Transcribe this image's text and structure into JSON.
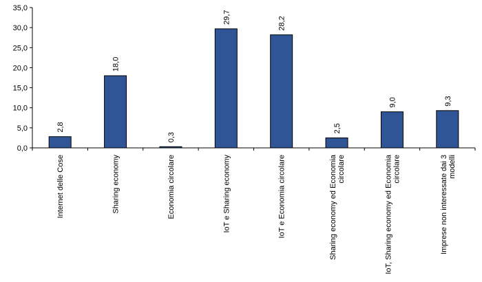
{
  "chart_data": {
    "type": "bar",
    "categories": [
      "Internet delle Cose",
      "Sharing economy",
      "Economia circolare",
      "IoT e Sharing economy",
      "IoT e Economia circolare",
      "Sharing economy ed Economia circolare",
      "IoT, Sharing economy ed Economia circolare",
      "Imprese non interessate dai 3 modelli"
    ],
    "values": [
      2.8,
      18.0,
      0.3,
      29.7,
      28.2,
      2.5,
      9.0,
      9.3
    ],
    "value_labels": [
      "2,8",
      "18,0",
      "0,3",
      "29,7",
      "28,2",
      "2,5",
      "9,0",
      "9,3"
    ],
    "y_ticks": [
      0,
      5,
      10,
      15,
      20,
      25,
      30,
      35
    ],
    "y_tick_labels": [
      "0,0",
      "5,0",
      "10,0",
      "15,0",
      "20,0",
      "25,0",
      "30,0",
      "35,0"
    ],
    "ylim": [
      0,
      35
    ],
    "grid": false,
    "legend": "none",
    "title": "",
    "xlabel": "",
    "ylabel": "",
    "bar_color": "#2F5597",
    "bar_edge_color": "#000000"
  }
}
